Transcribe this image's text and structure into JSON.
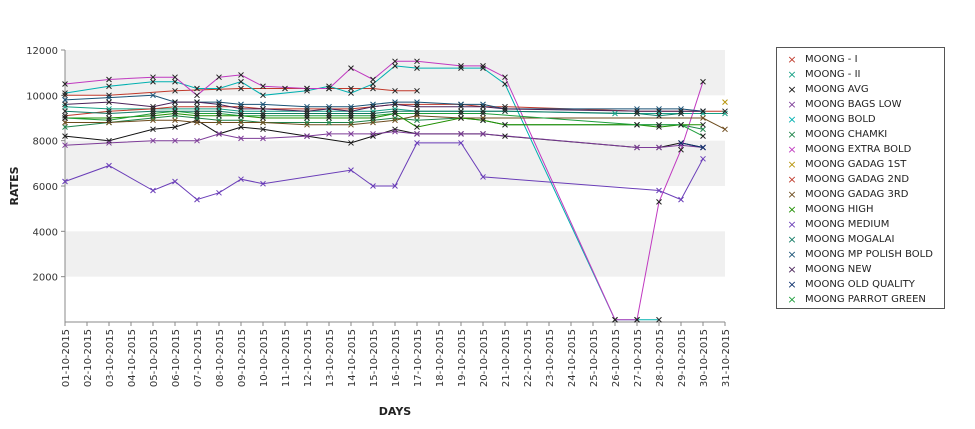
{
  "chart_data": {
    "type": "line",
    "title": "",
    "xlabel": "DAYS",
    "ylabel": "RATES",
    "ylim": [
      0,
      12000
    ],
    "yticks": [
      "2000",
      "4000",
      "6000",
      "8000",
      "10000",
      "12000"
    ],
    "ytick_values": [
      2000,
      4000,
      6000,
      8000,
      10000,
      12000
    ],
    "categories": [
      "01-10-2015",
      "02-10-2015",
      "03-10-2015",
      "04-10-2015",
      "05-10-2015",
      "06-10-2015",
      "07-10-2015",
      "08-10-2015",
      "09-10-2015",
      "10-10-2015",
      "11-10-2015",
      "12-10-2015",
      "13-10-2015",
      "14-10-2015",
      "15-10-2015",
      "16-10-2015",
      "17-10-2015",
      "18-10-2015",
      "19-10-2015",
      "20-10-2015",
      "21-10-2015",
      "22-10-2015",
      "23-10-2015",
      "24-10-2015",
      "25-10-2015",
      "26-10-2015",
      "27-10-2015",
      "28-10-2015",
      "29-10-2015",
      "30-10-2015",
      "31-10-2015"
    ],
    "grid": "alternating horizontal bands",
    "legend_position": "right",
    "series": [
      {
        "name": "MOONG - I",
        "color": "#c0392b",
        "values": [
          10000,
          null,
          10000,
          null,
          null,
          10200,
          null,
          null,
          10300,
          null,
          10300,
          10300,
          10300,
          10300,
          10300,
          10200,
          10200,
          null,
          null,
          null,
          null,
          null,
          null,
          null,
          null,
          null,
          null,
          null,
          null,
          null,
          null
        ]
      },
      {
        "name": "MOONG - II",
        "color": "#16a085",
        "values": [
          9500,
          null,
          9400,
          null,
          null,
          9400,
          9400,
          9400,
          9300,
          null,
          null,
          9300,
          9300,
          9300,
          9300,
          9400,
          9300,
          null,
          9300,
          9300,
          9300,
          null,
          null,
          null,
          null,
          9200,
          9200,
          9200,
          9200,
          9200,
          9200
        ]
      },
      {
        "name": "MOONG AVG",
        "color": "#111111",
        "values": [
          8200,
          null,
          8000,
          null,
          8500,
          8600,
          8900,
          8300,
          8600,
          8500,
          null,
          8200,
          null,
          7900,
          8200,
          8500,
          8300,
          null,
          8300,
          8300,
          8200,
          null,
          null,
          null,
          null,
          null,
          7700,
          7700,
          7900,
          7700,
          null
        ]
      },
      {
        "name": "MOONG BAGS LOW",
        "color": "#7d3c98",
        "values": [
          7800,
          null,
          7900,
          null,
          8000,
          8000,
          8000,
          8300,
          8100,
          8100,
          null,
          8200,
          8300,
          8300,
          8300,
          8400,
          8300,
          null,
          8300,
          8300,
          null,
          null,
          null,
          null,
          null,
          null,
          7700,
          7700,
          7800,
          7700,
          null
        ]
      },
      {
        "name": "MOONG BOLD",
        "color": "#00b0b0",
        "values": [
          10100,
          null,
          10400,
          null,
          10600,
          10600,
          10300,
          10300,
          10600,
          10000,
          null,
          10200,
          10400,
          10100,
          10500,
          11300,
          11200,
          null,
          11200,
          11200,
          10500,
          null,
          null,
          null,
          null,
          100,
          100,
          100,
          null,
          null,
          null
        ]
      },
      {
        "name": "MOONG CHAMKI",
        "color": "#1e8449",
        "values": [
          8600,
          null,
          8800,
          null,
          9000,
          9100,
          9000,
          8900,
          8900,
          8800,
          null,
          8800,
          8800,
          8800,
          8900,
          9000,
          8900,
          null,
          9000,
          8900,
          8700,
          null,
          null,
          null,
          null,
          null,
          8700,
          8700,
          8700,
          8500,
          null
        ]
      },
      {
        "name": "MOONG EXTRA BOLD",
        "color": "#c039c0",
        "values": [
          10500,
          null,
          10700,
          null,
          10800,
          10800,
          10000,
          10800,
          10900,
          10400,
          null,
          10300,
          10300,
          11200,
          10700,
          11500,
          11500,
          null,
          11300,
          11300,
          10800,
          null,
          null,
          null,
          null,
          100,
          100,
          5300,
          7600,
          10600,
          null
        ]
      },
      {
        "name": "MOONG GADAG 1ST",
        "color": "#b7950b",
        "values": [
          null,
          null,
          null,
          null,
          null,
          null,
          null,
          null,
          null,
          null,
          null,
          null,
          null,
          null,
          null,
          null,
          null,
          null,
          null,
          null,
          null,
          null,
          null,
          null,
          null,
          null,
          null,
          null,
          null,
          null,
          9700
        ]
      },
      {
        "name": "MOONG GADAG 2ND",
        "color": "#c0392b",
        "values": [
          9100,
          null,
          9300,
          null,
          9400,
          9500,
          9500,
          9500,
          9500,
          9400,
          null,
          9400,
          9400,
          9400,
          9500,
          9600,
          9600,
          null,
          9600,
          9500,
          9500,
          null,
          null,
          null,
          null,
          null,
          9300,
          9300,
          9300,
          9300,
          9300
        ]
      },
      {
        "name": "MOONG GADAG 3RD",
        "color": "#6e4c1e",
        "values": [
          8800,
          null,
          8800,
          null,
          8900,
          8900,
          8800,
          8800,
          8800,
          8800,
          null,
          8700,
          null,
          8700,
          8800,
          8900,
          9100,
          null,
          9000,
          9000,
          null,
          null,
          null,
          null,
          null,
          null,
          null,
          null,
          null,
          9000,
          8500
        ]
      },
      {
        "name": "MOONG HIGH",
        "color": "#1f8f00",
        "values": [
          9000,
          null,
          9000,
          null,
          9100,
          9200,
          9100,
          9100,
          9100,
          9000,
          null,
          9000,
          9000,
          9000,
          9000,
          9200,
          8600,
          null,
          9000,
          8900,
          8700,
          null,
          null,
          null,
          null,
          null,
          8700,
          8600,
          8700,
          8700,
          null
        ]
      },
      {
        "name": "MOONG MEDIUM",
        "color": "#6a3db8",
        "values": [
          6200,
          null,
          6900,
          null,
          5800,
          6200,
          5400,
          5700,
          6300,
          6100,
          null,
          null,
          null,
          6700,
          6000,
          6000,
          7900,
          null,
          7900,
          6400,
          null,
          null,
          null,
          null,
          null,
          null,
          null,
          5800,
          5400,
          7200,
          null
        ]
      },
      {
        "name": "MOONG MOGALAI",
        "color": "#117a65",
        "values": [
          9300,
          null,
          9200,
          null,
          9300,
          9300,
          9300,
          9300,
          9200,
          9200,
          null,
          9200,
          9200,
          9200,
          9200,
          9300,
          9300,
          null,
          9300,
          9300,
          9300,
          null,
          null,
          null,
          null,
          null,
          9200,
          9100,
          9200,
          null,
          null
        ]
      },
      {
        "name": "MOONG MP POLISH BOLD",
        "color": "#1a5276",
        "values": [
          9800,
          null,
          9900,
          null,
          10000,
          9700,
          9700,
          9700,
          9600,
          9600,
          null,
          9500,
          9500,
          9500,
          9600,
          9700,
          9700,
          null,
          9600,
          9600,
          9400,
          null,
          null,
          null,
          null,
          null,
          9400,
          9400,
          9400,
          9300,
          null
        ]
      },
      {
        "name": "MOONG NEW",
        "color": "#4a235a",
        "values": [
          9600,
          null,
          9700,
          null,
          9500,
          9700,
          9700,
          9600,
          9400,
          9400,
          null,
          9300,
          9400,
          9300,
          9500,
          9600,
          9500,
          null,
          9500,
          9500,
          9400,
          null,
          null,
          null,
          null,
          null,
          9300,
          9300,
          9300,
          9300,
          null
        ]
      },
      {
        "name": "MOONG OLD QUALITY",
        "color": "#0b2f6b",
        "values": [
          null,
          null,
          null,
          null,
          null,
          null,
          null,
          null,
          null,
          null,
          null,
          null,
          null,
          null,
          null,
          null,
          null,
          null,
          null,
          null,
          null,
          null,
          null,
          null,
          null,
          null,
          null,
          null,
          7900,
          7700,
          null
        ]
      },
      {
        "name": "MOONG PARROT GREEN",
        "color": "#1e9e3c",
        "values": [
          9000,
          null,
          8900,
          null,
          9200,
          9300,
          9200,
          9200,
          9100,
          9100,
          null,
          9100,
          9100,
          9100,
          9100,
          9200,
          9200,
          null,
          9200,
          9200,
          null,
          null,
          null,
          null,
          null,
          null,
          8700,
          8700,
          8700,
          8200,
          null
        ]
      }
    ]
  }
}
